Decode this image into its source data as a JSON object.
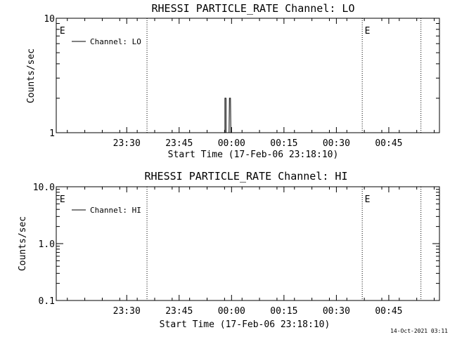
{
  "chart_data": [
    {
      "type": "line",
      "title": "RHESSI PARTICLE_RATE Channel: LO",
      "xlabel": "Start Time (17-Feb-06 23:18:10)",
      "ylabel": "Counts/sec",
      "y_scale": "log",
      "ylim": [
        1,
        10
      ],
      "y_ticks": [
        {
          "v": 1,
          "label": "1"
        },
        {
          "v": 10,
          "label": "10"
        }
      ],
      "x_range_min": [
        -8.17,
        70.5
      ],
      "x_ticks": [
        {
          "min": 12,
          "label": "23:30"
        },
        {
          "min": 27,
          "label": "23:45"
        },
        {
          "min": 42,
          "label": "00:00"
        },
        {
          "min": 57,
          "label": "00:15"
        },
        {
          "min": 72,
          "label": "00:30"
        },
        {
          "min": 87,
          "label": "00:45"
        }
      ],
      "vlines_min": [
        17.8,
        79.4,
        96.2
      ],
      "markers": [
        {
          "label": "E",
          "min": -7.2
        },
        {
          "label": "E",
          "min": 80.1
        }
      ],
      "legend": {
        "position": "top-left",
        "label": "Channel: LO"
      },
      "grid": false,
      "series": [
        {
          "name": "Channel: LO",
          "points": [
            [
              39.9,
              1
            ],
            [
              40.1,
              1
            ],
            [
              40.1,
              2
            ],
            [
              40.4,
              2
            ],
            [
              40.4,
              1
            ],
            [
              40.6,
              1
            ],
            [
              41.3,
              1
            ],
            [
              41.4,
              2
            ],
            [
              41.7,
              2
            ],
            [
              41.8,
              1
            ],
            [
              42.0,
              1
            ]
          ]
        }
      ]
    },
    {
      "type": "line",
      "title": "RHESSI PARTICLE_RATE Channel: HI",
      "xlabel": "Start Time (17-Feb-06 23:18:10)",
      "ylabel": "Counts/sec",
      "y_scale": "log",
      "ylim": [
        0.1,
        10
      ],
      "y_ticks": [
        {
          "v": 0.1,
          "label": "0.1"
        },
        {
          "v": 1,
          "label": "1.0"
        },
        {
          "v": 10,
          "label": "10.0"
        }
      ],
      "x_range_min": [
        -8.17,
        70.5
      ],
      "x_ticks": [
        {
          "min": 12,
          "label": "23:30"
        },
        {
          "min": 27,
          "label": "23:45"
        },
        {
          "min": 42,
          "label": "00:00"
        },
        {
          "min": 57,
          "label": "00:15"
        },
        {
          "min": 72,
          "label": "00:30"
        },
        {
          "min": 87,
          "label": "00:45"
        }
      ],
      "vlines_min": [
        17.8,
        79.4,
        96.2
      ],
      "markers": [
        {
          "label": "E",
          "min": -7.2
        },
        {
          "label": "E",
          "min": 80.1
        }
      ],
      "legend": {
        "position": "top-left",
        "label": "Channel: HI"
      },
      "grid": false,
      "series": [
        {
          "name": "Channel: HI",
          "points": []
        }
      ]
    }
  ],
  "timestamp": "14-Oct-2021 03:11"
}
